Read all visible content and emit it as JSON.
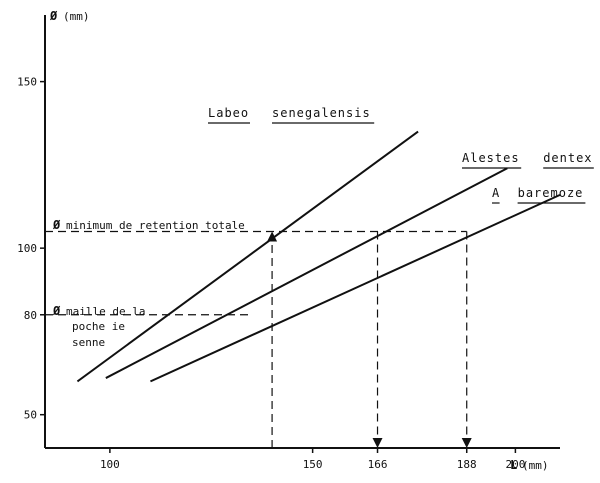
{
  "chart_data": {
    "type": "line",
    "x_axis": {
      "label": "L",
      "unit": "(mm)",
      "range": [
        84,
        211
      ],
      "ticks": [
        100,
        150,
        166,
        188,
        200
      ]
    },
    "y_axis": {
      "label": "Ø",
      "unit": "(mm)",
      "range": [
        40,
        170
      ],
      "ticks": [
        50,
        80,
        100,
        150
      ]
    },
    "series": [
      {
        "name": "Labeo senegalensis",
        "name_parts": [
          "Labeo",
          "senegalensis"
        ],
        "x": [
          92,
          176
        ],
        "y": [
          60,
          135
        ]
      },
      {
        "name": "Alestes dentex",
        "name_parts": [
          "Alestes",
          "dentex"
        ],
        "x": [
          99,
          198
        ],
        "y": [
          61,
          124
        ]
      },
      {
        "name": "A baremoze",
        "name_parts": [
          "A",
          "baremoze"
        ],
        "x": [
          110,
          211
        ],
        "y": [
          60,
          116
        ]
      }
    ],
    "reference_lines": [
      {
        "label": "Ø minimum de retention totale",
        "y": 105
      },
      {
        "label": "Ø maille de la poche de senne",
        "y": 80
      }
    ],
    "marked_x": [
      140,
      166,
      188
    ],
    "annotations": {
      "min_retention": {
        "symbol": "Ø",
        "text": "minimum de retention totale"
      },
      "mesh_lines": [
        {
          "symbol": "Ø",
          "text": "maille de la"
        },
        {
          "symbol": "",
          "text": "poche ie"
        },
        {
          "symbol": "",
          "text": "senne"
        }
      ]
    },
    "grid": false
  }
}
